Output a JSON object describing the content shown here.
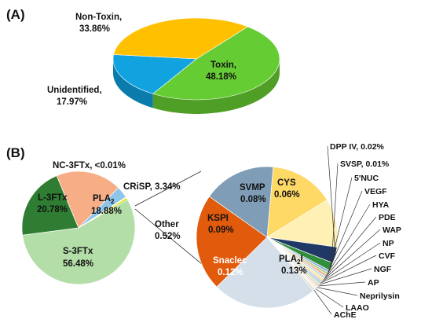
{
  "chart_data": [
    {
      "type": "pie",
      "panel": "(A)",
      "slices": [
        {
          "label": "Toxin,",
          "value_text": "48.18%",
          "value": 48.18,
          "color": "#66cc33",
          "side": "#4f9e25"
        },
        {
          "label": "Unidentified,",
          "value_text": "17.97%",
          "value": 17.97,
          "color": "#11a3df",
          "side": "#0b7bab"
        },
        {
          "label": "Non-Toxin,",
          "value_text": "33.86%",
          "value": 33.86,
          "color": "#ffc000",
          "side": "#c99600"
        }
      ]
    },
    {
      "type": "pie",
      "panel": "(B)",
      "slices": [
        {
          "label": "S-3FTx",
          "value_text": "56.48%",
          "value": 56.48,
          "color": "#b4dea8"
        },
        {
          "label": "L-3FTx",
          "value_text": "20.78%",
          "value": 20.78,
          "color": "#2e7d32"
        },
        {
          "label": "PLA",
          "sub": "2",
          "value_text": "18.88%",
          "value": 18.88,
          "color": "#f7ae87"
        },
        {
          "label": "CRiSP, 3.34%",
          "value": 3.34,
          "color": "#8ec5eb"
        },
        {
          "label": "NC-3FTx, <0.01%",
          "value": 0.01,
          "color": "#ffff66"
        },
        {
          "label": "Other",
          "value_text": "0.52%",
          "value": 0.52,
          "color": "#c8e000"
        }
      ]
    },
    {
      "type": "pie",
      "panel": "(B) Other breakdown",
      "slices": [
        {
          "label": "SVMP",
          "value_text": "0.08%",
          "value": 0.08,
          "color": "#ffd966"
        },
        {
          "label": "CYS",
          "value_text": "0.06%",
          "value": 0.06,
          "color": "#fff0b3"
        },
        {
          "label": "DPP IV, 0.02%",
          "value": 0.02,
          "color": "#1f3864"
        },
        {
          "label": "SVSP, 0.01%",
          "value": 0.01,
          "color": "#2f8f3a"
        },
        {
          "label": "5'NUC",
          "value": 0.003,
          "color": "#8faadc"
        },
        {
          "label": "VEGF",
          "value": 0.003,
          "color": "#a9d18e"
        },
        {
          "label": "HYA",
          "value": 0.003,
          "color": "#f4b183"
        },
        {
          "label": "PDE",
          "value": 0.003,
          "color": "#bdd7ee"
        },
        {
          "label": "WAP",
          "value": 0.003,
          "color": "#ffe699"
        },
        {
          "label": "NP",
          "value": 0.002,
          "color": "#c9c9c9"
        },
        {
          "label": "CVF",
          "value": 0.002,
          "color": "#9dc3e6"
        },
        {
          "label": "NGF",
          "value": 0.002,
          "color": "#c5e0b4"
        },
        {
          "label": "AP",
          "value": 0.002,
          "color": "#f8cbad"
        },
        {
          "label": "Neprilysin",
          "value": 0.002,
          "color": "#ddebf7"
        },
        {
          "label": "LAAO",
          "value": 0.002,
          "color": "#fff2cc"
        },
        {
          "label": "AChE",
          "value": 0.002,
          "color": "#d9d9d9"
        },
        {
          "label": "PLA",
          "sub": "2",
          "suffix": "I",
          "value_text": "0.13%",
          "value": 0.13,
          "color": "#d5dfe9"
        },
        {
          "label": "Snaclec",
          "value_text": "0.12%",
          "value": 0.12,
          "color": "#e25a0c"
        },
        {
          "label": "KSPI",
          "value_text": "0.09%",
          "value": 0.09,
          "color": "#7f9db6"
        }
      ]
    }
  ]
}
